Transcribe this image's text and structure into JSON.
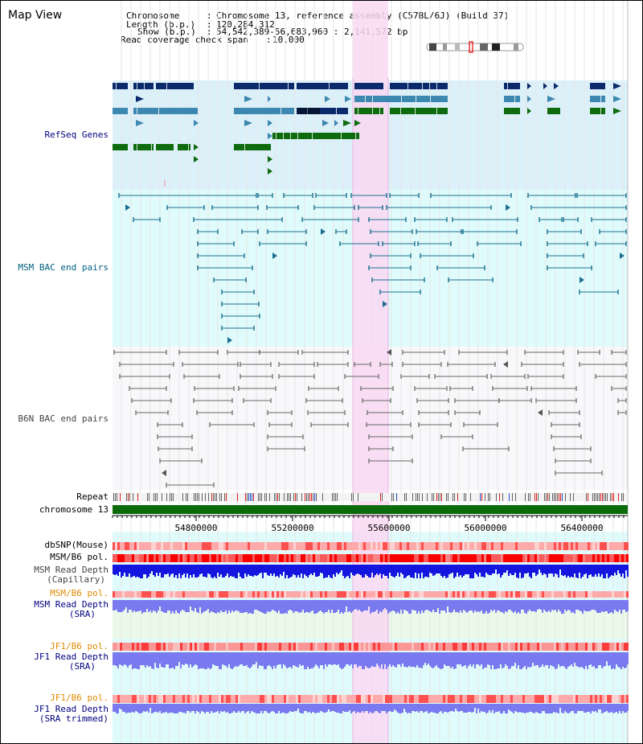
{
  "header": {
    "title": "Map View",
    "chromosome_key": "Chromosome",
    "chromosome_value": "Chromosome 13, reference assembly (C57BL/6J) (Build 37)",
    "length_key": "Length (b.p.)",
    "length_value": "120,284,312",
    "show_key": "Show (b.p.)",
    "show_value": "54,542,389-56,683,960 : 2,141,572 bp",
    "coverage_key": "Read coverage check span",
    "coverage_value": "10,000"
  },
  "tracks": {
    "refseq": "RefSeq Genes",
    "msm_bac": "MSM BAC end pairs",
    "b6n_bac": "B6N BAC end pairs",
    "repeat": "Repeat",
    "chromosome": "chromosome 13",
    "dbsnp": "dbSNP(Mouse)",
    "msm_b6_pol_1": "MSM/B6 pol.",
    "msm_read_depth_cap_1": "MSM Read Depth",
    "msm_read_depth_cap_2": "(Capillary)",
    "msm_b6_pol_2": "MSM/B6 pol.",
    "msm_read_depth_sra_1": "MSM Read Depth",
    "msm_read_depth_sra_2": "(SRA)",
    "jf1_b6_pol_1": "JF1/B6 pol.",
    "jf1_read_depth_1": "JF1 Read Depth",
    "jf1_read_depth_2": "(SRA)",
    "jf1_b6_pol_2": "JF1/B6 pol.",
    "jf1_read_depth_trim_1": "JF1 Read Depth",
    "jf1_read_depth_trim_2": "(SRA trimmed)"
  },
  "axis": {
    "ticks": [
      "54800000",
      "55200000",
      "55600000",
      "56000000",
      "56400000"
    ]
  },
  "colors": {
    "highlight": "#f9d8f2",
    "refseq_bg": "#dcf0fa",
    "msm_bg": "#e0fbfb",
    "gene_dark": "#0a2a6b",
    "gene_mid": "#3d88b0",
    "gene_light": "#6aacd0",
    "gene_green": "#0e6b0e",
    "msm_line": "#1a7090",
    "b6n_line": "#666666",
    "chrom_bar": "#0b6b0b",
    "depth_dark": "#1515e0",
    "depth_light": "#7a7af0"
  }
}
